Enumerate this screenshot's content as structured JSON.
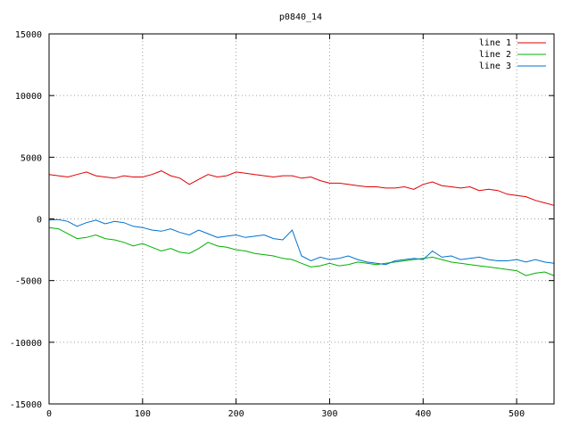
{
  "chart_data": {
    "type": "line",
    "title": "p0840_14",
    "xlabel": "",
    "ylabel": "",
    "xlim": [
      0,
      540
    ],
    "ylim": [
      -15000,
      15000
    ],
    "xticks": [
      0,
      100,
      200,
      300,
      400,
      500
    ],
    "yticks": [
      -15000,
      -10000,
      -5000,
      0,
      5000,
      10000,
      15000
    ],
    "grid": true,
    "legend_position": "top-right",
    "series": [
      {
        "name": "line 1",
        "color": "#e00000",
        "x": [
          0,
          10,
          20,
          30,
          40,
          50,
          60,
          70,
          80,
          90,
          100,
          110,
          120,
          130,
          140,
          150,
          160,
          170,
          180,
          190,
          200,
          210,
          220,
          230,
          240,
          250,
          260,
          270,
          280,
          290,
          300,
          310,
          320,
          330,
          340,
          350,
          360,
          370,
          380,
          390,
          400,
          410,
          420,
          430,
          440,
          450,
          460,
          470,
          480,
          490,
          500,
          510,
          520,
          530,
          540
        ],
        "y": [
          3600,
          3500,
          3400,
          3600,
          3800,
          3500,
          3400,
          3300,
          3500,
          3400,
          3400,
          3600,
          3900,
          3500,
          3300,
          2800,
          3200,
          3600,
          3400,
          3500,
          3800,
          3700,
          3600,
          3500,
          3400,
          3500,
          3500,
          3300,
          3400,
          3100,
          2900,
          2900,
          2800,
          2700,
          2600,
          2600,
          2500,
          2500,
          2600,
          2400,
          2800,
          3000,
          2700,
          2600,
          2500,
          2600,
          2300,
          2400,
          2300,
          2000,
          1900,
          1800,
          1500,
          1300,
          1100
        ]
      },
      {
        "name": "line 2",
        "color": "#00b000",
        "x": [
          0,
          10,
          20,
          30,
          40,
          50,
          60,
          70,
          80,
          90,
          100,
          110,
          120,
          130,
          140,
          150,
          160,
          170,
          180,
          190,
          200,
          210,
          220,
          230,
          240,
          250,
          260,
          270,
          280,
          290,
          300,
          310,
          320,
          330,
          340,
          350,
          360,
          370,
          380,
          390,
          400,
          410,
          420,
          430,
          440,
          450,
          460,
          470,
          480,
          490,
          500,
          510,
          520,
          530,
          540
        ],
        "y": [
          -700,
          -800,
          -1200,
          -1600,
          -1500,
          -1300,
          -1600,
          -1700,
          -1900,
          -2200,
          -2000,
          -2300,
          -2600,
          -2400,
          -2700,
          -2800,
          -2400,
          -1900,
          -2200,
          -2300,
          -2500,
          -2600,
          -2800,
          -2900,
          -3000,
          -3200,
          -3300,
          -3600,
          -3900,
          -3800,
          -3600,
          -3800,
          -3700,
          -3500,
          -3600,
          -3700,
          -3600,
          -3500,
          -3400,
          -3300,
          -3200,
          -3100,
          -3300,
          -3500,
          -3600,
          -3700,
          -3800,
          -3900,
          -4000,
          -4100,
          -4200,
          -4600,
          -4400,
          -4300,
          -4600
        ]
      },
      {
        "name": "line 3",
        "color": "#0070d0",
        "x": [
          0,
          10,
          20,
          30,
          40,
          50,
          60,
          70,
          80,
          90,
          100,
          110,
          120,
          130,
          140,
          150,
          160,
          170,
          180,
          190,
          200,
          210,
          220,
          230,
          240,
          250,
          260,
          270,
          280,
          290,
          300,
          310,
          320,
          330,
          340,
          350,
          360,
          370,
          380,
          390,
          400,
          410,
          420,
          430,
          440,
          450,
          460,
          470,
          480,
          490,
          500,
          510,
          520,
          530,
          540
        ],
        "y": [
          -100,
          -50,
          -200,
          -600,
          -300,
          -100,
          -400,
          -200,
          -300,
          -600,
          -700,
          -900,
          -1000,
          -800,
          -1100,
          -1300,
          -900,
          -1200,
          -1500,
          -1400,
          -1300,
          -1500,
          -1400,
          -1300,
          -1600,
          -1700,
          -900,
          -3000,
          -3400,
          -3100,
          -3300,
          -3200,
          -3000,
          -3300,
          -3500,
          -3600,
          -3700,
          -3400,
          -3300,
          -3200,
          -3300,
          -2600,
          -3100,
          -3000,
          -3300,
          -3200,
          -3100,
          -3300,
          -3400,
          -3400,
          -3300,
          -3500,
          -3300,
          -3500,
          -3600
        ]
      }
    ]
  }
}
